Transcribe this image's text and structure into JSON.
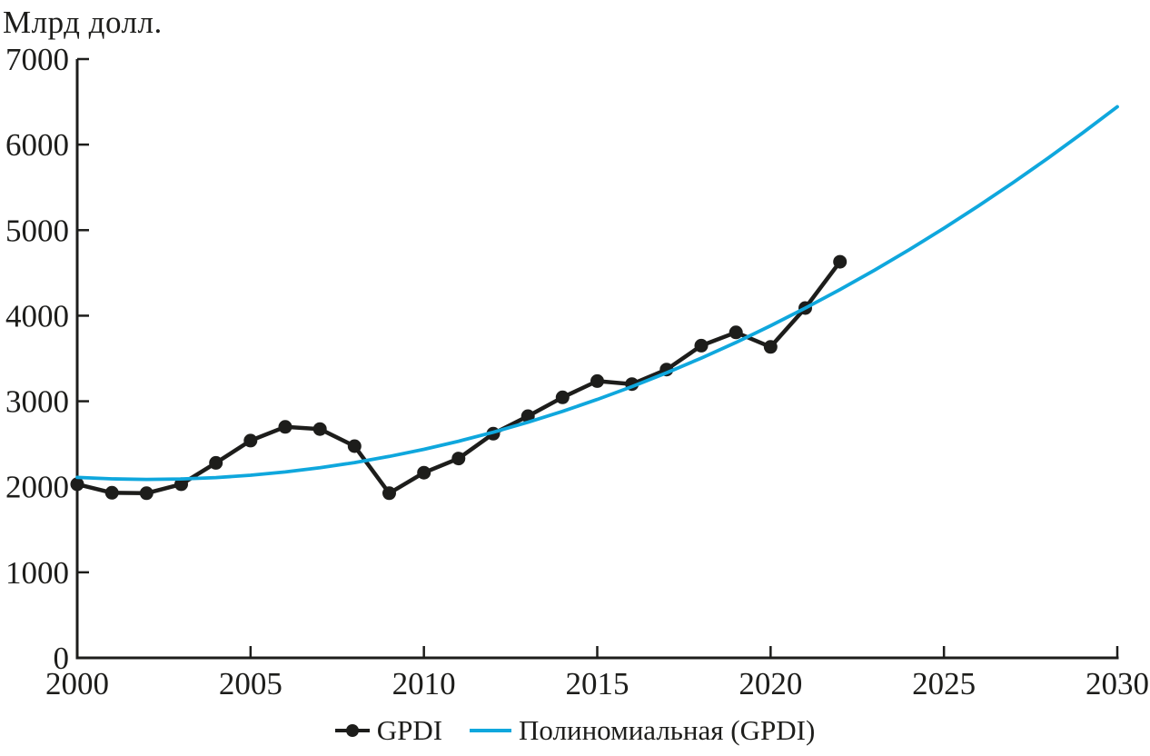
{
  "y_axis_title": "Млрд долл.",
  "legend": {
    "series_label": "GPDI",
    "trend_label": "Полиномиальная (GPDI)"
  },
  "colors": {
    "series": "#1d1d1b",
    "trend": "#0fa7dd",
    "axis": "#1d1d1b",
    "text": "#1d1d1b"
  },
  "chart_data": {
    "type": "line",
    "title": "",
    "ylabel": "Млрд долл.",
    "xlabel": "",
    "grid": false,
    "legend_position": "bottom-center",
    "xlim": [
      2000,
      2030
    ],
    "ylim": [
      0,
      7000
    ],
    "x_ticks": [
      2000,
      2005,
      2010,
      2015,
      2020,
      2025,
      2030
    ],
    "y_ticks": [
      0,
      1000,
      2000,
      3000,
      4000,
      5000,
      6000,
      7000
    ],
    "series": [
      {
        "name": "GPDI",
        "style": "line+markers",
        "color": "#1d1d1b",
        "x": [
          2000,
          2001,
          2002,
          2003,
          2004,
          2005,
          2006,
          2007,
          2008,
          2009,
          2010,
          2011,
          2012,
          2013,
          2014,
          2015,
          2016,
          2017,
          2018,
          2019,
          2020,
          2021,
          2022
        ],
        "values": [
          2030,
          1930,
          1925,
          2030,
          2280,
          2540,
          2700,
          2675,
          2475,
          1925,
          2165,
          2330,
          2620,
          2825,
          3045,
          3235,
          3200,
          3370,
          3650,
          3805,
          3635,
          4090,
          4630
        ]
      },
      {
        "name": "Полиномиальная (GPDI)",
        "style": "line",
        "color": "#0fa7dd",
        "x": [
          2000,
          2001,
          2002,
          2003,
          2004,
          2005,
          2006,
          2007,
          2008,
          2009,
          2010,
          2011,
          2012,
          2013,
          2014,
          2015,
          2016,
          2017,
          2018,
          2019,
          2020,
          2021,
          2022,
          2023,
          2024,
          2025,
          2026,
          2027,
          2028,
          2029,
          2030
        ],
        "values": [
          2110,
          2093,
          2086,
          2091,
          2107,
          2135,
          2173,
          2222,
          2283,
          2355,
          2438,
          2532,
          2638,
          2754,
          2882,
          3021,
          3171,
          3332,
          3504,
          3687,
          3882,
          4088,
          4305,
          4533,
          4772,
          5023,
          5284,
          5557,
          5841,
          6136,
          6442
        ]
      }
    ]
  }
}
